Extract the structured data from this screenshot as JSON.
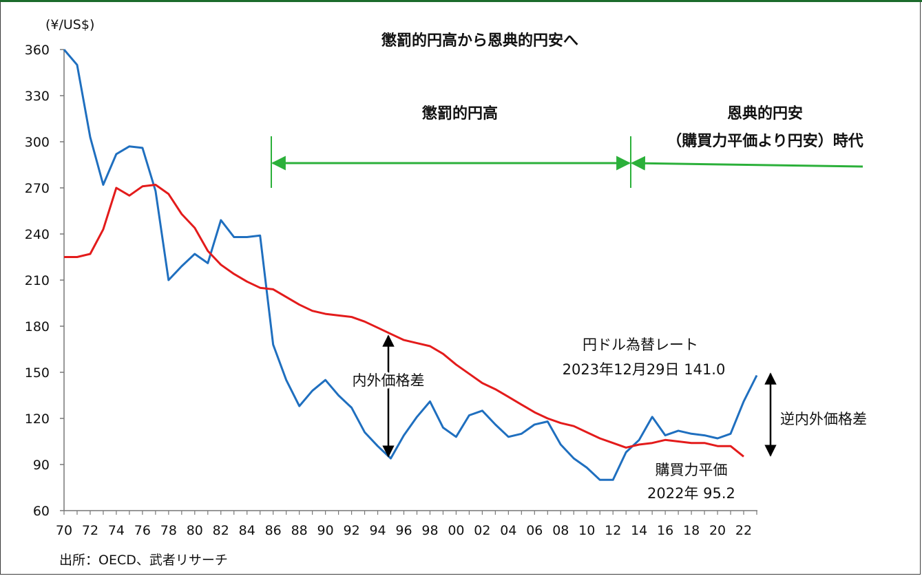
{
  "chart_data": {
    "type": "line",
    "title": "懲罰的円高から恩典的円安へ",
    "y_unit": "(¥/US$)",
    "ylim": [
      60,
      360
    ],
    "yticks": [
      60,
      90,
      120,
      150,
      180,
      210,
      240,
      270,
      300,
      330,
      360
    ],
    "x_range": [
      1970,
      2023
    ],
    "x_tick_labels": [
      "70",
      "72",
      "74",
      "76",
      "78",
      "80",
      "82",
      "84",
      "86",
      "88",
      "90",
      "92",
      "94",
      "96",
      "98",
      "00",
      "02",
      "04",
      "06",
      "08",
      "10",
      "12",
      "14",
      "16",
      "18",
      "20",
      "22"
    ],
    "series": [
      {
        "name": "円ドル為替レート",
        "color": "#1f6fbf",
        "x": [
          1970,
          1971,
          1972,
          1973,
          1974,
          1975,
          1976,
          1977,
          1978,
          1979,
          1980,
          1981,
          1982,
          1983,
          1984,
          1985,
          1986,
          1987,
          1988,
          1989,
          1990,
          1991,
          1992,
          1993,
          1994,
          1995,
          1996,
          1997,
          1998,
          1999,
          2000,
          2001,
          2002,
          2003,
          2004,
          2005,
          2006,
          2007,
          2008,
          2009,
          2010,
          2011,
          2012,
          2013,
          2014,
          2015,
          2016,
          2017,
          2018,
          2019,
          2020,
          2021,
          2022,
          2023
        ],
        "y": [
          360,
          350,
          303,
          272,
          292,
          297,
          296,
          268,
          210,
          219,
          227,
          221,
          249,
          238,
          238,
          239,
          168,
          145,
          128,
          138,
          145,
          135,
          127,
          111,
          102,
          94,
          109,
          121,
          131,
          114,
          108,
          122,
          125,
          116,
          108,
          110,
          116,
          118,
          103,
          94,
          88,
          80,
          80,
          98,
          106,
          121,
          109,
          112,
          110,
          109,
          107,
          110,
          131,
          148
        ]
      },
      {
        "name": "購買力平価",
        "color": "#e31b1b",
        "x": [
          1970,
          1971,
          1972,
          1973,
          1974,
          1975,
          1976,
          1977,
          1978,
          1979,
          1980,
          1981,
          1982,
          1983,
          1984,
          1985,
          1986,
          1987,
          1988,
          1989,
          1990,
          1991,
          1992,
          1993,
          1994,
          1995,
          1996,
          1997,
          1998,
          1999,
          2000,
          2001,
          2002,
          2003,
          2004,
          2005,
          2006,
          2007,
          2008,
          2009,
          2010,
          2011,
          2012,
          2013,
          2014,
          2015,
          2016,
          2017,
          2018,
          2019,
          2020,
          2021,
          2022
        ],
        "y": [
          225,
          225,
          227,
          243,
          270,
          265,
          271,
          272,
          266,
          253,
          244,
          229,
          220,
          214,
          209,
          205,
          204,
          199,
          194,
          190,
          188,
          187,
          186,
          183,
          179,
          175,
          171,
          169,
          167,
          162,
          155,
          149,
          143,
          139,
          134,
          129,
          124,
          120,
          117,
          115,
          111,
          107,
          104,
          101,
          103,
          104,
          106,
          105,
          104,
          104,
          102,
          102,
          95.2
        ]
      }
    ],
    "period_labels": {
      "penal": "懲罰的円高",
      "boon_line1": "恩典的円安",
      "boon_line2": "（購買力平価より円安）時代"
    },
    "annotations": {
      "gap": "内外価格差",
      "reverse_gap": "逆内外価格差",
      "fx_label": "円ドル為替レート",
      "fx_value": "2023年12月29日  141.0",
      "ppp_label": "購買力平価",
      "ppp_value": "2022年 95.2"
    },
    "source": "出所：OECD、武者リサーチ",
    "grid": false,
    "legend": "none"
  },
  "colors": {
    "arrow_green": "#2bb03a",
    "arrow_black": "#000000",
    "frame": "#3a3a3a",
    "top_bar": "#1c6b2c"
  }
}
